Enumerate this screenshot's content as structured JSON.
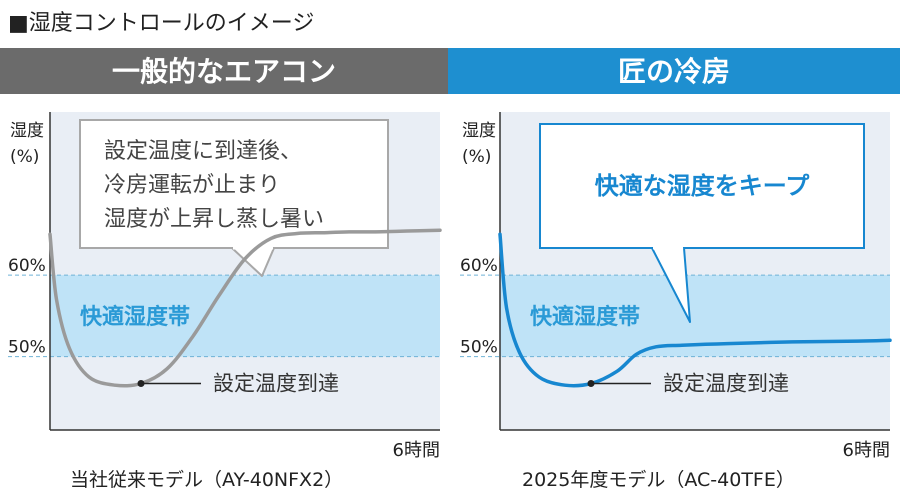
{
  "section_title": "■湿度コントロールのイメージ",
  "colors": {
    "left_header": "#6b6b6b",
    "right_header": "#1e8fd0",
    "plot_bg": "#e9eef5",
    "band": "#bfe3f7",
    "band_dash": "#6fb2d6",
    "band_label": "#2a9ad6",
    "left_curve": "#9a9a9a",
    "right_curve": "#1787d0",
    "left_callout_border": "#a8a8a8",
    "right_callout_border": "#1787d0",
    "right_callout_text": "#1787d0"
  },
  "chart_data": [
    {
      "type": "line",
      "header": "一般的なエアコン",
      "ylabel": [
        "湿度",
        "(%)"
      ],
      "xlabel": "6時間",
      "y_ticks": [
        {
          "value": 60,
          "label": "60%"
        },
        {
          "value": 50,
          "label": "50%"
        }
      ],
      "ylim": [
        41,
        80
      ],
      "xlim": [
        0,
        6
      ],
      "comfort_band": {
        "low": 50,
        "high": 60,
        "label": "快適湿度帯"
      },
      "series": [
        {
          "x": [
            0,
            0.1,
            0.3,
            0.6,
            1.0,
            1.4,
            1.8,
            2.2,
            2.6,
            3.0,
            3.4,
            3.8,
            4.2,
            4.6,
            5.0,
            5.5,
            6.0
          ],
          "y": [
            65,
            57,
            51,
            47.5,
            46.5,
            46.7,
            48.5,
            52.5,
            57.5,
            62,
            64.5,
            65.1,
            65.2,
            65.3,
            65.3,
            65.4,
            65.5
          ]
        }
      ],
      "marker": {
        "x": 1.4,
        "y": 46.7,
        "label": "設定温度到達"
      },
      "callout": {
        "lines": [
          "設定温度に到達後、",
          "冷房運転が止まり",
          "湿度が上昇し蒸し暑い"
        ]
      },
      "caption": "当社従来モデル（AY-40NFX2）"
    },
    {
      "type": "line",
      "header": "匠の冷房",
      "ylabel": [
        "湿度",
        "(%)"
      ],
      "xlabel": "6時間",
      "y_ticks": [
        {
          "value": 60,
          "label": "60%"
        },
        {
          "value": 50,
          "label": "50%"
        }
      ],
      "ylim": [
        41,
        80
      ],
      "xlim": [
        0,
        6
      ],
      "comfort_band": {
        "low": 50,
        "high": 60,
        "label": "快適湿度帯"
      },
      "series": [
        {
          "x": [
            0,
            0.1,
            0.3,
            0.6,
            1.0,
            1.4,
            1.8,
            2.1,
            2.4,
            2.8,
            3.5,
            4.5,
            5.5,
            6.0
          ],
          "y": [
            65,
            56,
            50.5,
            47.5,
            46.5,
            46.7,
            48.2,
            50.3,
            51.2,
            51.4,
            51.6,
            51.8,
            51.9,
            52.0
          ]
        }
      ],
      "marker": {
        "x": 1.4,
        "y": 46.7,
        "label": "設定温度到達"
      },
      "callout": {
        "lines": [
          "快適な湿度をキープ"
        ]
      },
      "caption": "2025年度モデル（AC-40TFE）"
    }
  ]
}
